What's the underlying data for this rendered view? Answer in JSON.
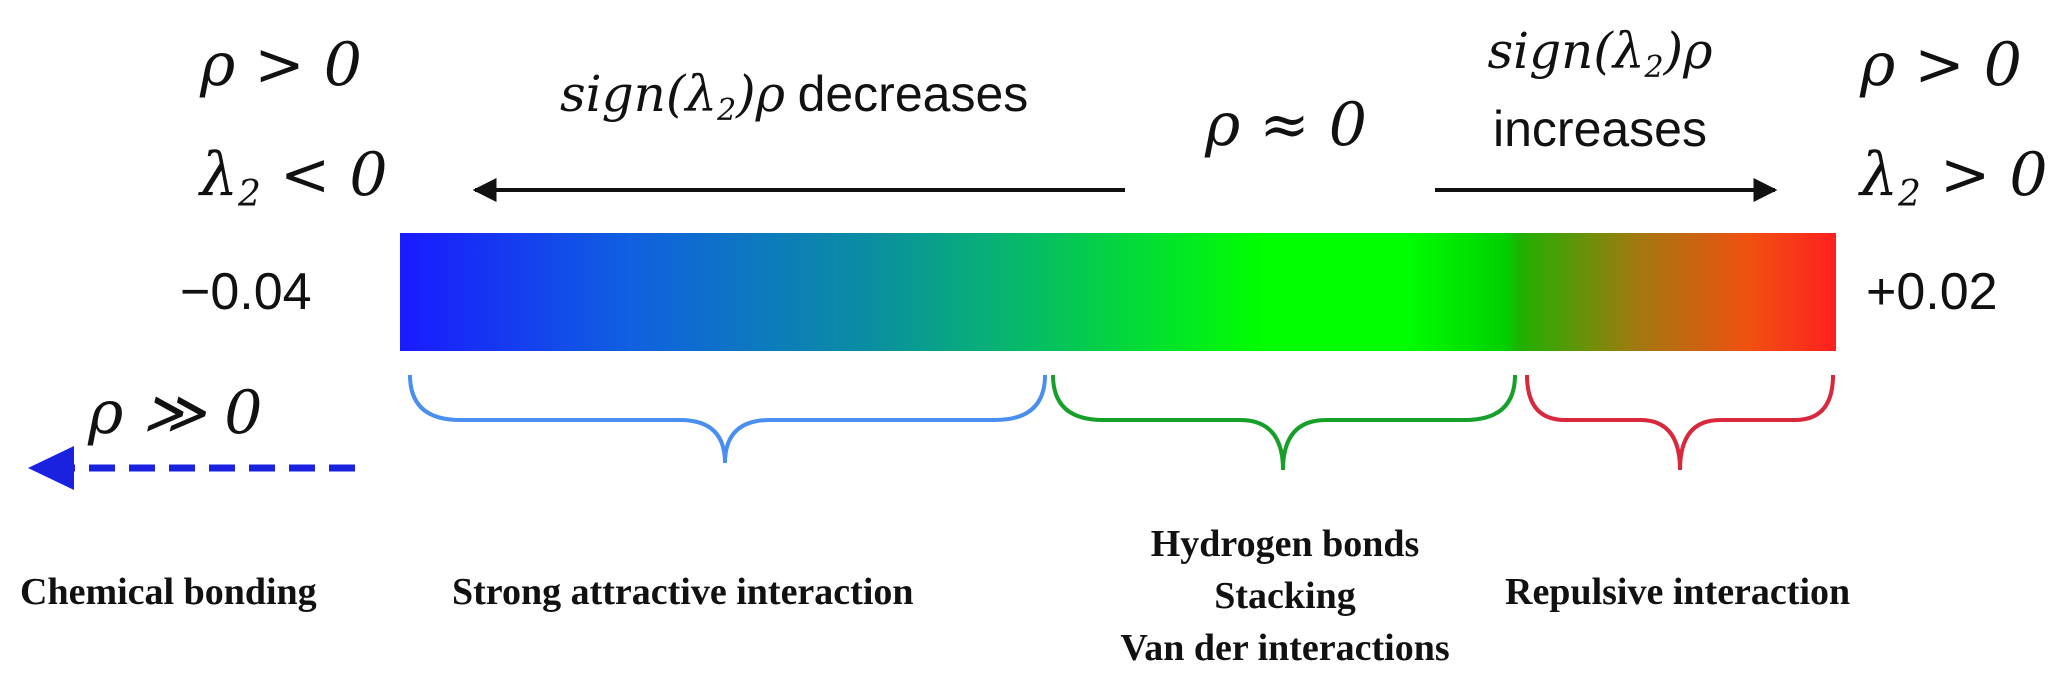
{
  "left": {
    "rho_cond": "ρ > 0",
    "lambda_cond": "λ",
    "lambda_sub": "2",
    "lambda_rest": " < 0",
    "min_value": "−0.04",
    "rho_strong": "ρ ≫ 0"
  },
  "right": {
    "rho_cond": "ρ > 0",
    "lambda_cond": "λ",
    "lambda_sub": "2",
    "lambda_rest": " > 0",
    "max_value": "+0.02"
  },
  "arrows": {
    "decrease_sign": "sign(λ",
    "decrease_sub": "2",
    "decrease_rest": ")ρ",
    "decrease_word": "decreases",
    "increase_sign": "sign(λ",
    "increase_sub": "2",
    "increase_rest": ")ρ",
    "increase_word": "increases",
    "center": "ρ ≈ 0"
  },
  "colors": {
    "attractive_brace": "#4a8ff0",
    "vdw_brace": "#16a02a",
    "repulsive_brace": "#d8283c",
    "dashed_arrow": "#1a22e0"
  },
  "labels": {
    "chemical": "Chemical bonding",
    "attractive": "Strong attractive interaction",
    "vdw_line1": "Hydrogen bonds",
    "vdw_line2": "Stacking",
    "vdw_line3": "Van der interactions",
    "repulsive": "Repulsive interaction"
  }
}
